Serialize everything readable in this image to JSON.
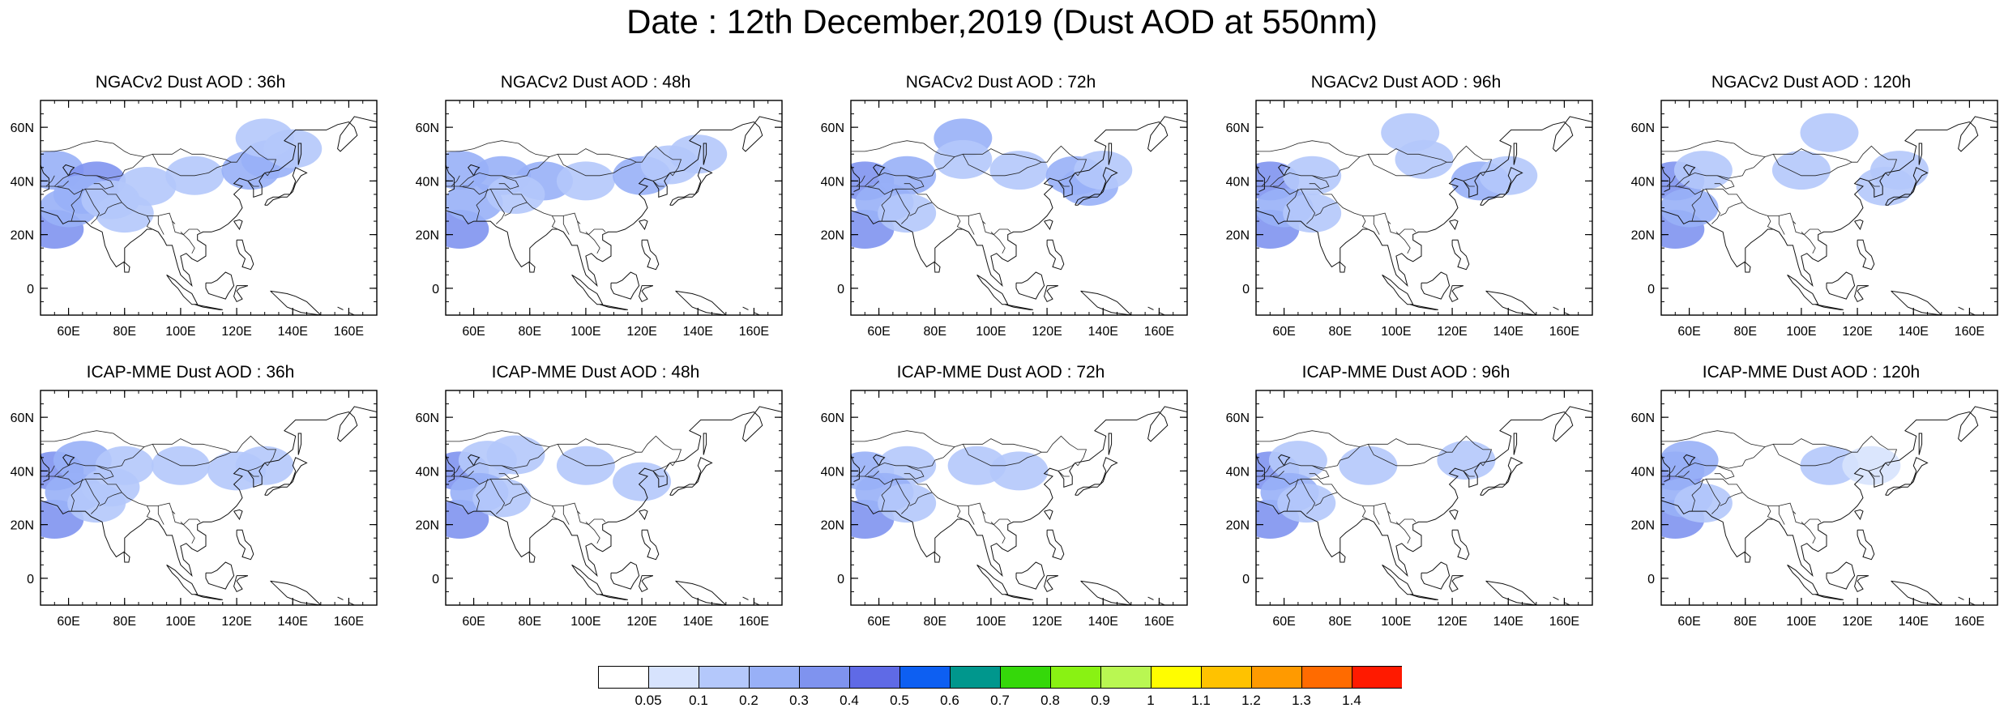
{
  "title": "Date : 12th December,2019 (Dust AOD at 550nm)",
  "panels": [
    {
      "title": "NGACv2 Dust AOD : 36h",
      "blobs": [
        [
          55,
          44,
          0.28
        ],
        [
          70,
          40,
          0.3
        ],
        [
          88,
          38,
          0.18
        ],
        [
          105,
          42,
          0.12
        ],
        [
          125,
          44,
          0.25
        ],
        [
          132,
          48,
          0.2
        ],
        [
          140,
          52,
          0.12
        ],
        [
          130,
          56,
          0.1
        ],
        [
          55,
          22,
          0.3
        ],
        [
          60,
          30,
          0.25
        ],
        [
          65,
          35,
          0.2
        ],
        [
          75,
          33,
          0.15
        ],
        [
          80,
          28,
          0.12
        ]
      ]
    },
    {
      "title": "NGACv2 Dust AOD : 48h",
      "blobs": [
        [
          55,
          44,
          0.25
        ],
        [
          70,
          42,
          0.25
        ],
        [
          85,
          40,
          0.2
        ],
        [
          100,
          40,
          0.12
        ],
        [
          120,
          42,
          0.2
        ],
        [
          130,
          46,
          0.18
        ],
        [
          140,
          50,
          0.12
        ],
        [
          55,
          22,
          0.32
        ],
        [
          60,
          32,
          0.25
        ],
        [
          75,
          35,
          0.12
        ]
      ]
    },
    {
      "title": "NGACv2 Dust AOD : 72h",
      "blobs": [
        [
          55,
          40,
          0.3
        ],
        [
          70,
          42,
          0.2
        ],
        [
          90,
          56,
          0.2
        ],
        [
          90,
          48,
          0.12
        ],
        [
          110,
          44,
          0.1
        ],
        [
          130,
          42,
          0.25
        ],
        [
          135,
          38,
          0.2
        ],
        [
          140,
          44,
          0.15
        ],
        [
          55,
          22,
          0.35
        ],
        [
          62,
          32,
          0.25
        ],
        [
          70,
          28,
          0.15
        ]
      ]
    },
    {
      "title": "NGACv2 Dust AOD : 96h",
      "blobs": [
        [
          55,
          40,
          0.3
        ],
        [
          70,
          42,
          0.15
        ],
        [
          105,
          58,
          0.15
        ],
        [
          110,
          48,
          0.1
        ],
        [
          130,
          40,
          0.2
        ],
        [
          140,
          42,
          0.12
        ],
        [
          55,
          22,
          0.35
        ],
        [
          60,
          30,
          0.22
        ],
        [
          70,
          28,
          0.1
        ]
      ]
    },
    {
      "title": "NGACv2 Dust AOD : 120h",
      "blobs": [
        [
          55,
          40,
          0.3
        ],
        [
          65,
          44,
          0.15
        ],
        [
          110,
          58,
          0.15
        ],
        [
          100,
          44,
          0.1
        ],
        [
          135,
          44,
          0.12
        ],
        [
          130,
          38,
          0.1
        ],
        [
          55,
          22,
          0.35
        ],
        [
          60,
          30,
          0.2
        ]
      ]
    },
    {
      "title": "ICAP-MME Dust AOD : 36h",
      "blobs": [
        [
          55,
          40,
          0.3
        ],
        [
          65,
          44,
          0.2
        ],
        [
          80,
          42,
          0.12
        ],
        [
          100,
          42,
          0.1
        ],
        [
          120,
          40,
          0.15
        ],
        [
          130,
          42,
          0.12
        ],
        [
          55,
          22,
          0.35
        ],
        [
          62,
          32,
          0.25
        ],
        [
          70,
          28,
          0.15
        ],
        [
          75,
          34,
          0.12
        ]
      ]
    },
    {
      "title": "ICAP-MME Dust AOD : 48h",
      "blobs": [
        [
          55,
          40,
          0.3
        ],
        [
          65,
          44,
          0.15
        ],
        [
          75,
          46,
          0.1
        ],
        [
          100,
          42,
          0.1
        ],
        [
          120,
          36,
          0.12
        ],
        [
          55,
          22,
          0.35
        ],
        [
          62,
          32,
          0.25
        ],
        [
          70,
          30,
          0.15
        ]
      ]
    },
    {
      "title": "ICAP-MME Dust AOD : 72h",
      "blobs": [
        [
          55,
          40,
          0.25
        ],
        [
          70,
          42,
          0.12
        ],
        [
          95,
          42,
          0.1
        ],
        [
          110,
          40,
          0.1
        ],
        [
          55,
          22,
          0.35
        ],
        [
          62,
          32,
          0.2
        ],
        [
          70,
          28,
          0.12
        ]
      ]
    },
    {
      "title": "ICAP-MME Dust AOD : 96h",
      "blobs": [
        [
          55,
          40,
          0.3
        ],
        [
          65,
          44,
          0.15
        ],
        [
          90,
          42,
          0.1
        ],
        [
          125,
          44,
          0.1
        ],
        [
          55,
          22,
          0.35
        ],
        [
          62,
          32,
          0.22
        ],
        [
          68,
          28,
          0.12
        ]
      ]
    },
    {
      "title": "ICAP-MME Dust AOD : 120h",
      "blobs": [
        [
          55,
          40,
          0.35
        ],
        [
          60,
          44,
          0.2
        ],
        [
          110,
          42,
          0.1
        ],
        [
          125,
          42,
          0.08
        ],
        [
          55,
          22,
          0.35
        ],
        [
          58,
          30,
          0.25
        ],
        [
          65,
          28,
          0.12
        ]
      ]
    }
  ],
  "map": {
    "lon_range": [
      50,
      170
    ],
    "lat_range": [
      -10,
      70
    ],
    "lon_ticks": [
      "60E",
      "80E",
      "100E",
      "120E",
      "140E",
      "160E"
    ],
    "lon_tick_values": [
      60,
      80,
      100,
      120,
      140,
      160
    ],
    "lat_ticks": [
      "0",
      "20N",
      "40N",
      "60N"
    ],
    "lat_tick_values": [
      0,
      20,
      40,
      60
    ]
  },
  "colorbar": {
    "labels": [
      "0.05",
      "0.1",
      "0.2",
      "0.3",
      "0.4",
      "0.5",
      "0.6",
      "0.7",
      "0.8",
      "0.9",
      "1",
      "1.1",
      "1.2",
      "1.3",
      "1.4"
    ],
    "colors": [
      "#ffffff",
      "#d7e3fd",
      "#b4c8fb",
      "#98b0f7",
      "#7f93ef",
      "#5f6ae6",
      "#0d5ff2",
      "#00978d",
      "#35d80a",
      "#89f213",
      "#b9f752",
      "#fffd00",
      "#ffc200",
      "#ff9a00",
      "#ff6b00",
      "#ff1a00"
    ],
    "palette_breaks": [
      0.05,
      0.1,
      0.2,
      0.3,
      0.4,
      0.5,
      0.6,
      0.7,
      0.8,
      0.9,
      1.0,
      1.1,
      1.2,
      1.3,
      1.4
    ]
  }
}
